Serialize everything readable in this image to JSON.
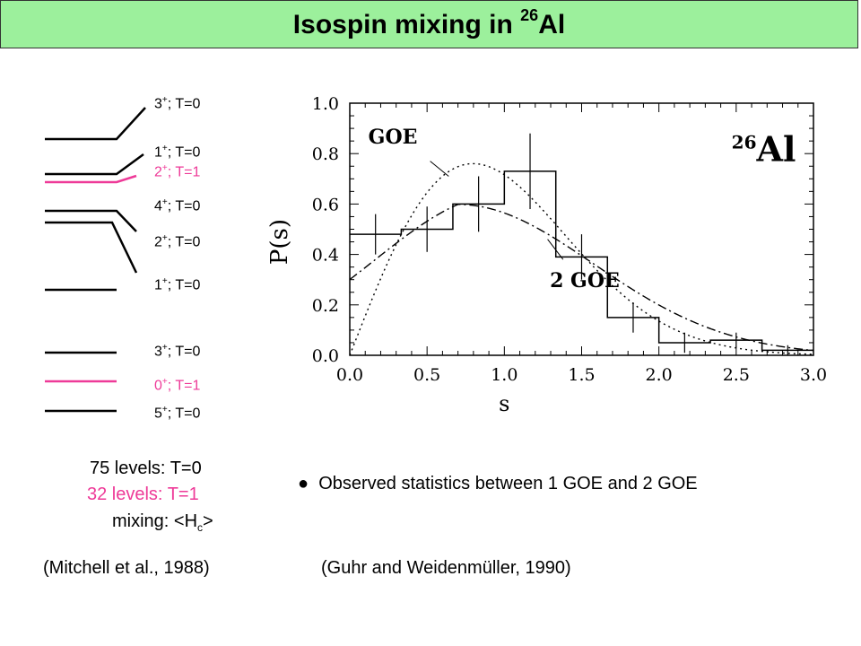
{
  "title": {
    "main": "Isospin mixing in ",
    "mass": "26",
    "element": "Al"
  },
  "level_scheme": {
    "levels": [
      {
        "spin": "3",
        "parity": "+",
        "rest": "; T=0",
        "color": "#000000"
      },
      {
        "spin": "1",
        "parity": "+",
        "rest": "; T=0",
        "color": "#000000"
      },
      {
        "spin": "2",
        "parity": "+",
        "rest": "; T=1",
        "color": "#ee3a98"
      },
      {
        "spin": "4",
        "parity": "+",
        "rest": "; T=0",
        "color": "#000000"
      },
      {
        "spin": "2",
        "parity": "+",
        "rest": "; T=0",
        "color": "#000000"
      },
      {
        "spin": "1",
        "parity": "+",
        "rest": "; T=0",
        "color": "#000000"
      },
      {
        "spin": "3",
        "parity": "+",
        "rest": "; T=0",
        "color": "#000000"
      },
      {
        "spin": "0",
        "parity": "+",
        "rest": "; T=1",
        "color": "#ee3a98"
      },
      {
        "spin": "5",
        "parity": "+",
        "rest": "; T=0",
        "color": "#000000"
      }
    ]
  },
  "summary": {
    "t0": "75 levels: T=0",
    "t1": "32 levels: T=1",
    "mixing_label": "mixing: <H",
    "mixing_sub": "c",
    "mixing_end": ">"
  },
  "bullet": "●",
  "observation": "Observed  statistics between 1 GOE and 2 GOE",
  "citation_left": "(Mitchell et al., 1988)",
  "citation_right": "(Guhr and Weidenmüller, 1990)",
  "colors": {
    "banner": "#9cf09c",
    "t1": "#ee3a98"
  },
  "chart_data": {
    "type": "line",
    "xlabel": "s",
    "ylabel": "P(s)",
    "xlim": [
      0.0,
      3.0
    ],
    "ylim": [
      0.0,
      1.0
    ],
    "xticks": [
      "0.0",
      "0.5",
      "1.0",
      "1.5",
      "2.0",
      "2.5",
      "3.0"
    ],
    "yticks": [
      "0.0",
      "0.2",
      "0.4",
      "0.6",
      "0.8",
      "1.0"
    ],
    "grid": false,
    "nucleus_label": {
      "mass": "26",
      "element": "Al"
    },
    "annotations": [
      "GOE",
      "2 GOE"
    ],
    "histogram": {
      "edges": [
        0.0,
        0.333,
        0.667,
        1.0,
        1.333,
        1.667,
        2.0,
        2.333,
        2.667,
        3.0
      ],
      "values": [
        0.48,
        0.5,
        0.6,
        0.73,
        0.39,
        0.15,
        0.05,
        0.06,
        0.02
      ],
      "errors": [
        0.08,
        0.09,
        0.11,
        0.15,
        0.09,
        0.06,
        0.04,
        0.03,
        0.02
      ]
    },
    "series": [
      {
        "style": "dotted",
        "formula": "wigner_goe",
        "label": "GOE"
      },
      {
        "style": "dashdot",
        "formula": "two_goe",
        "label": "2 GOE"
      }
    ]
  }
}
